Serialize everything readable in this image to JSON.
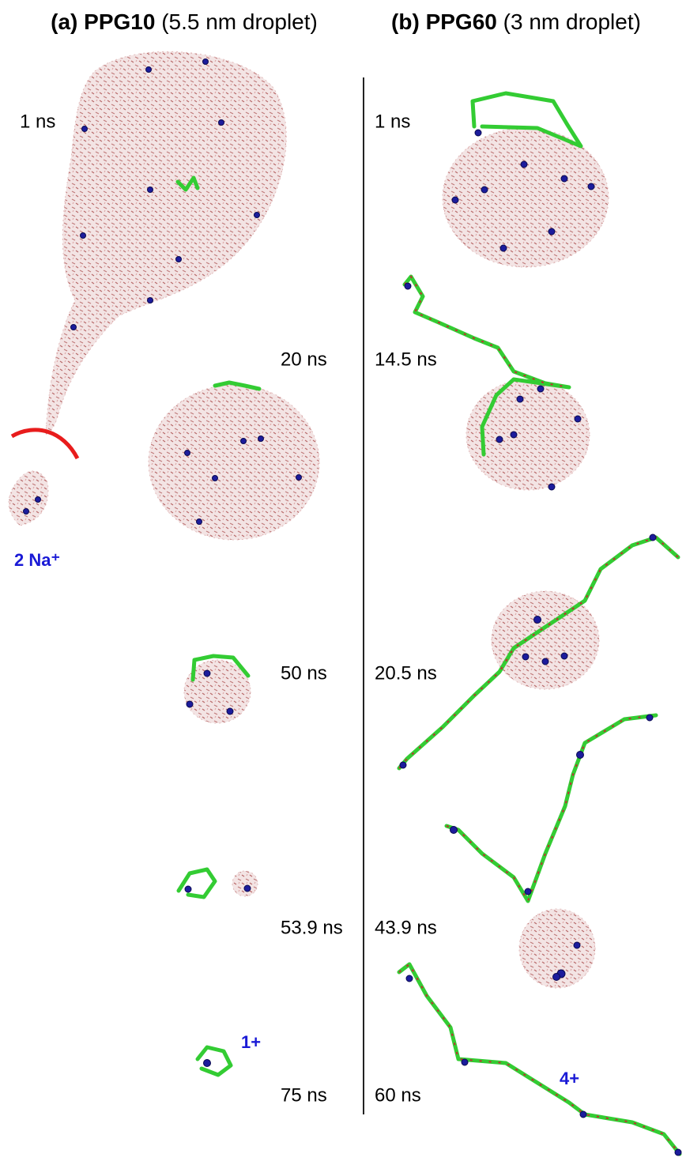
{
  "panels": [
    {
      "label": "(a) PPG10",
      "subtitle": "(5.5 nm droplet)",
      "frames": [
        "1 ns",
        "20 ns",
        "50 ns",
        "53.9 ns",
        "75 ns"
      ]
    },
    {
      "label": "(b) PPG60",
      "subtitle": "(3 nm droplet)",
      "frames": [
        "1 ns",
        "14.5 ns",
        "20.5 ns",
        "43.9 ns",
        "60 ns"
      ]
    }
  ],
  "annotations": {
    "ejected": "2 Na⁺",
    "charge_a": "1+",
    "charge_b": "4+"
  }
}
